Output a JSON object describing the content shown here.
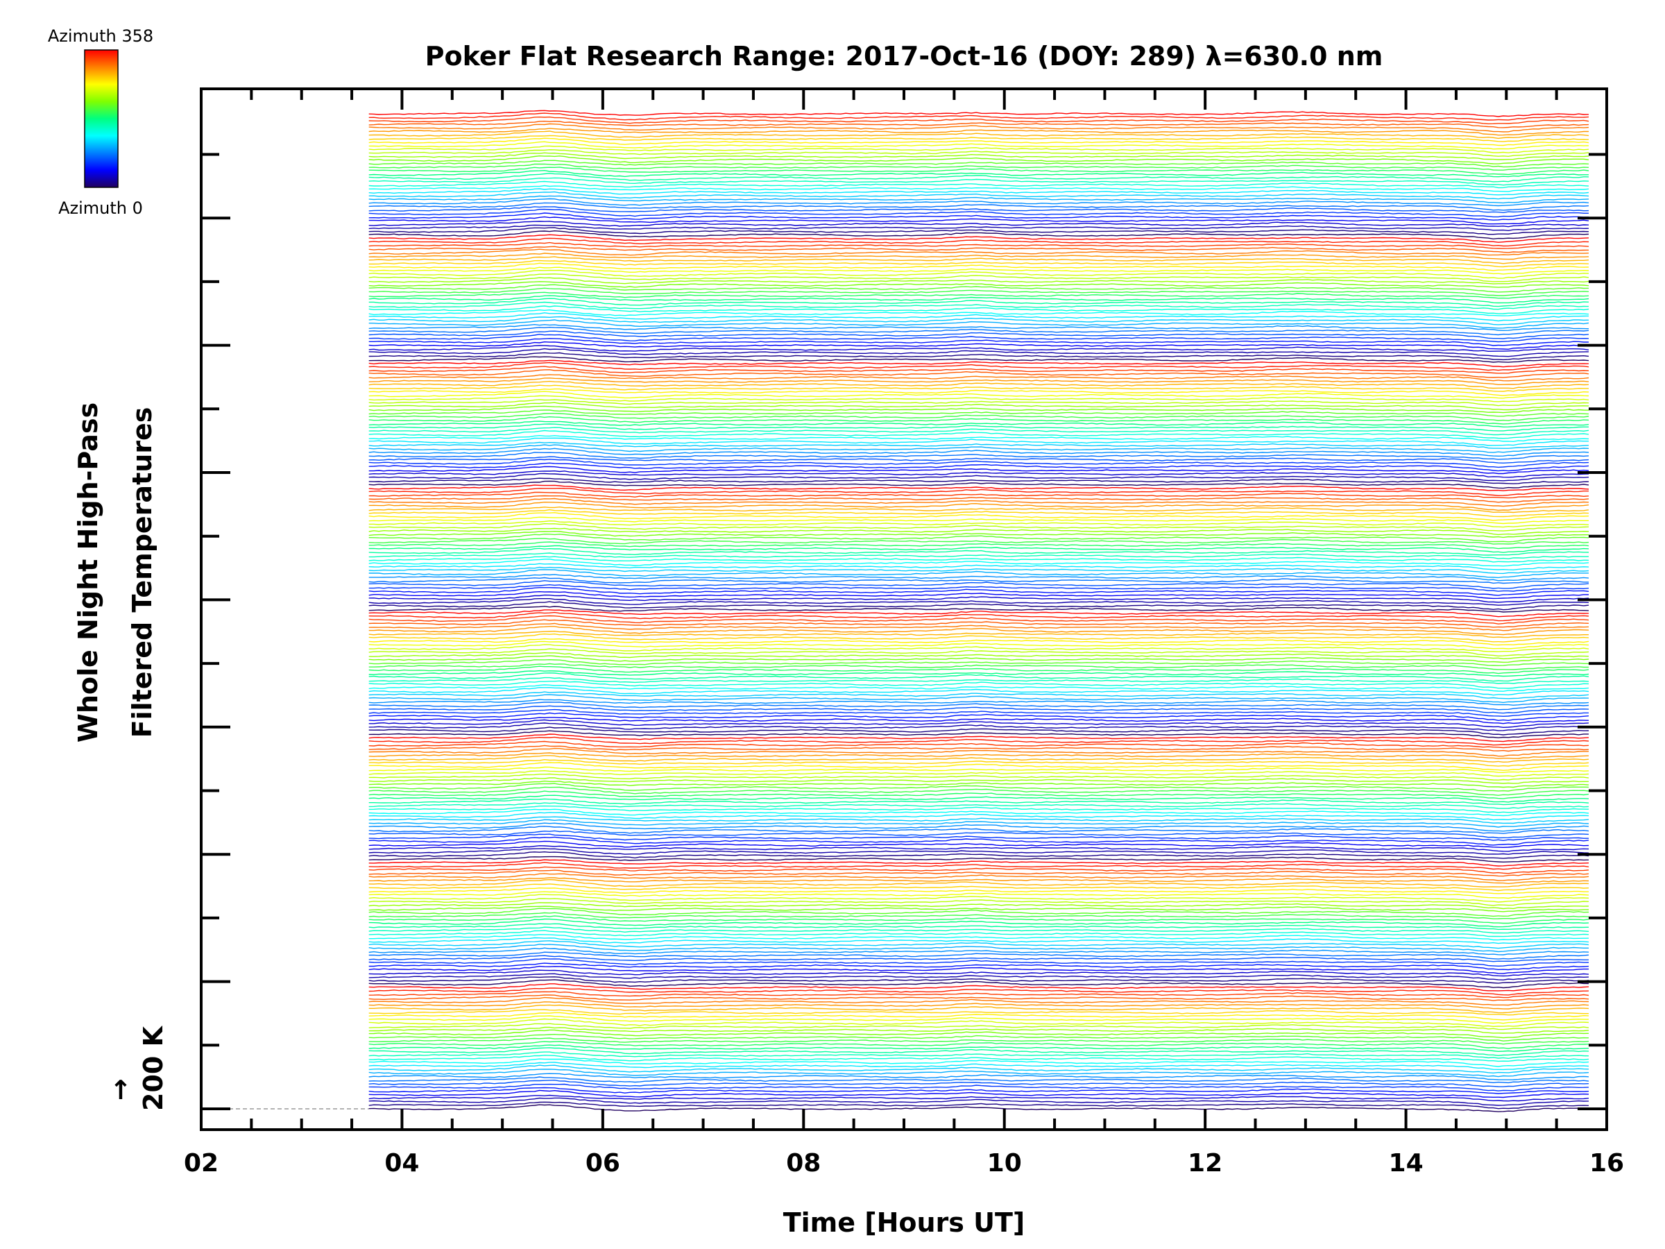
{
  "chart_data": {
    "type": "line",
    "title": "Poker Flat Research Range: 2017-Oct-16 (DOY: 289) λ=630.0 nm",
    "xlabel": "Time [Hours UT]",
    "ylabel_line1": "Whole Night High-Pass",
    "ylabel_line2": "Filtered Temperatures",
    "scale_label": "200 K",
    "scale_arrow": "↑",
    "xlim": [
      2,
      16
    ],
    "x_ticks": [
      "02",
      "04",
      "06",
      "08",
      "10",
      "12",
      "14",
      "16"
    ],
    "x_start": 3.67,
    "x_end": 15.83,
    "series_count": 280,
    "azimuth_range": [
      0,
      358
    ],
    "azimuth_groups": 8,
    "colorbar": {
      "top_label": "Azimuth 358",
      "bottom_label": "Azimuth 0",
      "colors": [
        "#ff0000",
        "#ff8000",
        "#ffff00",
        "#80ff00",
        "#00ff80",
        "#00ffff",
        "#0080ff",
        "#0000ff",
        "#200060"
      ]
    },
    "perturbations": [
      {
        "time": 5.45,
        "amplitude": 14,
        "width": 0.35
      },
      {
        "time": 6.3,
        "amplitude": -6,
        "width": 0.3
      },
      {
        "time": 9.7,
        "amplitude": 6,
        "width": 0.25
      },
      {
        "time": 12.9,
        "amplitude": 5,
        "width": 0.45
      },
      {
        "time": 14.95,
        "amplitude": -12,
        "width": 0.3
      }
    ]
  }
}
